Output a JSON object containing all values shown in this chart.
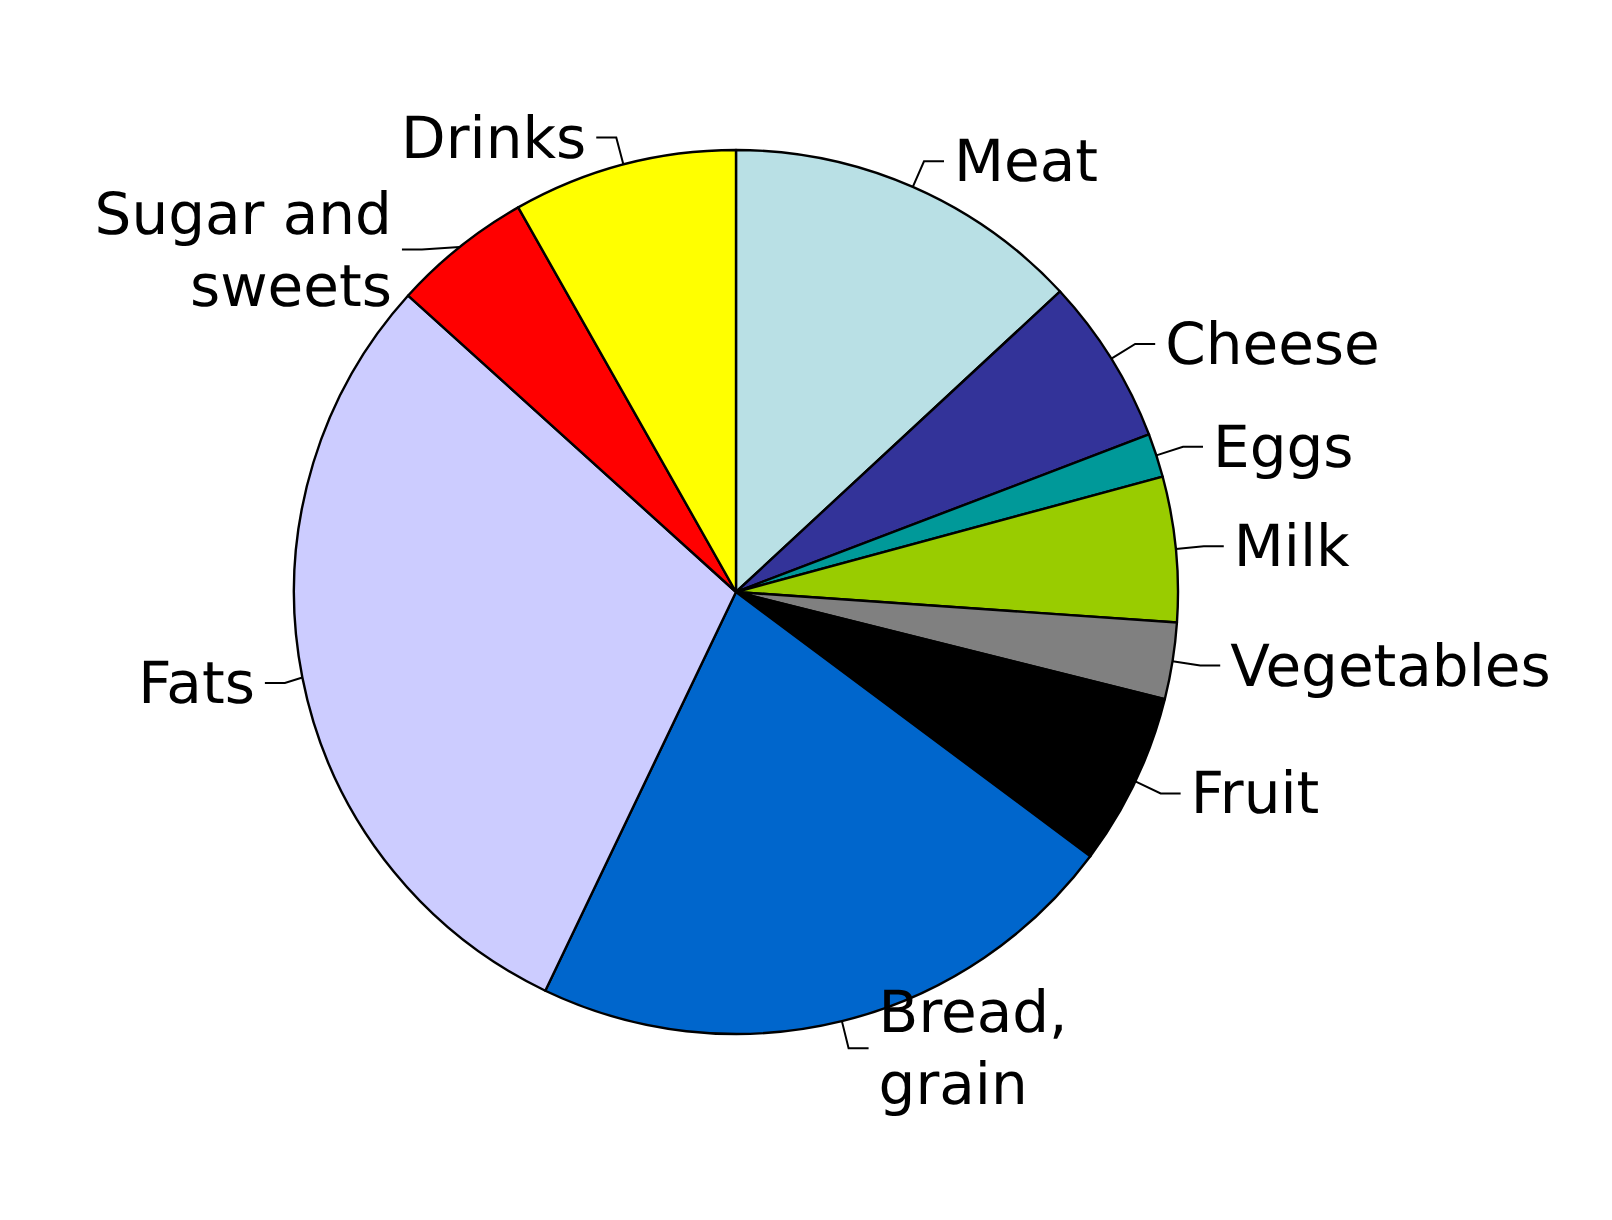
{
  "chart_data": {
    "type": "pie",
    "categories": [
      "Meat",
      "Cheese",
      "Eggs",
      "Milk",
      "Vegetables",
      "Fruit",
      "Bread,\ngrain",
      "Fats",
      "Sugar and\nsweets",
      "Drinks"
    ],
    "values": [
      13.1,
      6.1,
      1.6,
      5.3,
      2.8,
      6.3,
      21.9,
      29.6,
      5.1,
      8.2
    ],
    "colors": [
      "#b9e0e5",
      "#333399",
      "#009999",
      "#99cc00",
      "#808080",
      "#000000",
      "#0066cc",
      "#ccccff",
      "#ff0000",
      "#ffff00"
    ],
    "legend": false
  }
}
